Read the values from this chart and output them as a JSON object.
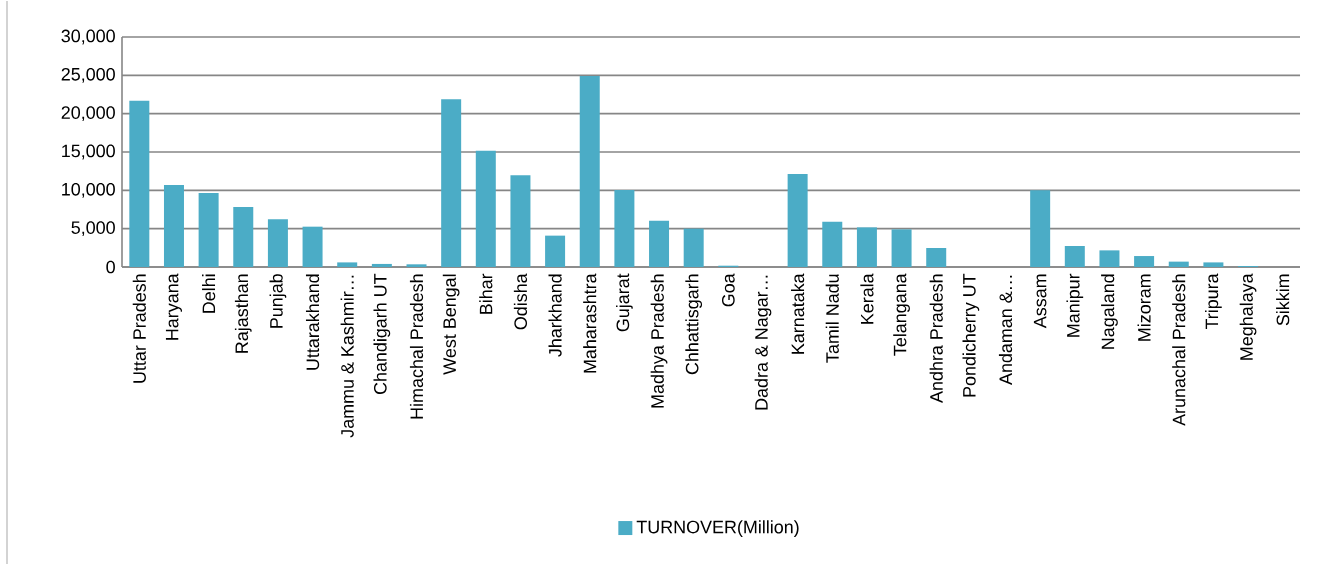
{
  "chart_data": {
    "type": "bar",
    "categories": [
      "Uttar Pradesh",
      "Haryana",
      "Delhi",
      "Rajasthan",
      "Punjab",
      "Uttarakhand",
      "Jammu & Kashmir…",
      "Chandigarh UT",
      "Himachal Pradesh",
      "West Bengal",
      "Bihar",
      "Odisha",
      "Jharkhand",
      "Maharashtra",
      "Gujarat",
      "Madhya Pradesh",
      "Chhattisgarh",
      "Goa",
      "Dadra & Nagar…",
      "Karnataka",
      "Tamil Nadu",
      "Kerala",
      "Telangana",
      "Andhra Pradesh",
      "Pondicherry UT",
      "Andaman &…",
      "Assam",
      "Manipur",
      "Nagaland",
      "Mizoram",
      "Arunachal Pradesh",
      "Tripura",
      "Meghalaya",
      "Sikkim"
    ],
    "series": [
      {
        "name": "TURNOVER(Million)",
        "color": "#4bacc6",
        "values": [
          21700,
          10700,
          9650,
          7830,
          6220,
          5260,
          600,
          400,
          350,
          21870,
          15170,
          11960,
          4090,
          24900,
          10040,
          6040,
          5000,
          170,
          0,
          12130,
          5910,
          5170,
          4910,
          2480,
          0,
          0,
          10000,
          2740,
          2170,
          1430,
          700,
          600,
          130,
          0
        ]
      }
    ],
    "ylim": [
      0,
      30000
    ],
    "yticks": [
      0,
      {
        "value": 5000,
        "label": "5,000"
      },
      {
        "value": 10000,
        "label": "10,000"
      },
      {
        "value": 15000,
        "label": "15,000"
      },
      {
        "value": 20000,
        "label": "20,000"
      },
      {
        "value": 25000,
        "label": "25,000"
      },
      {
        "value": 30000,
        "label": "30,000"
      }
    ],
    "grid": "y",
    "legend": "bottom"
  }
}
